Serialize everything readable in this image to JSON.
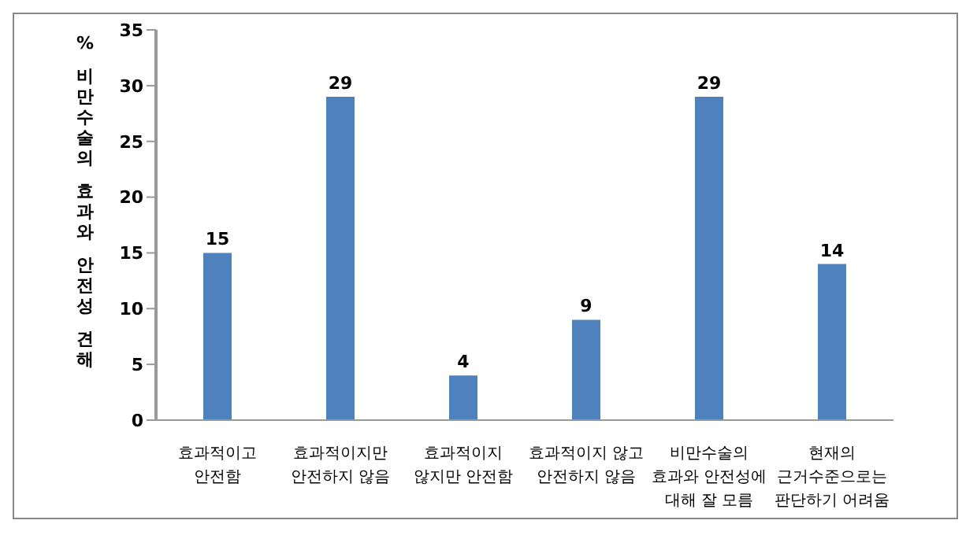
{
  "chart_data": {
    "type": "bar",
    "ylabel": "% 비만수술의 효과와 안전성 견해",
    "categories": [
      "효과적이고\n안전함",
      "효과적이지만\n안전하지 않음",
      "효과적이지\n않지만 안전함",
      "효과적이지 않고\n안전하지 않음",
      "비만수술의\n효과와 안전성에\n대해 잘 모름",
      "현재의\n근거수준으로는\n판단하기 어려움"
    ],
    "values": [
      15,
      29,
      4,
      9,
      29,
      14
    ],
    "color": "#4f81bd",
    "ylim": [
      0,
      35
    ],
    "yticks": [
      0,
      5,
      10,
      15,
      20,
      25,
      30,
      35
    ],
    "data_labels": true,
    "grid": false,
    "legend": false
  }
}
